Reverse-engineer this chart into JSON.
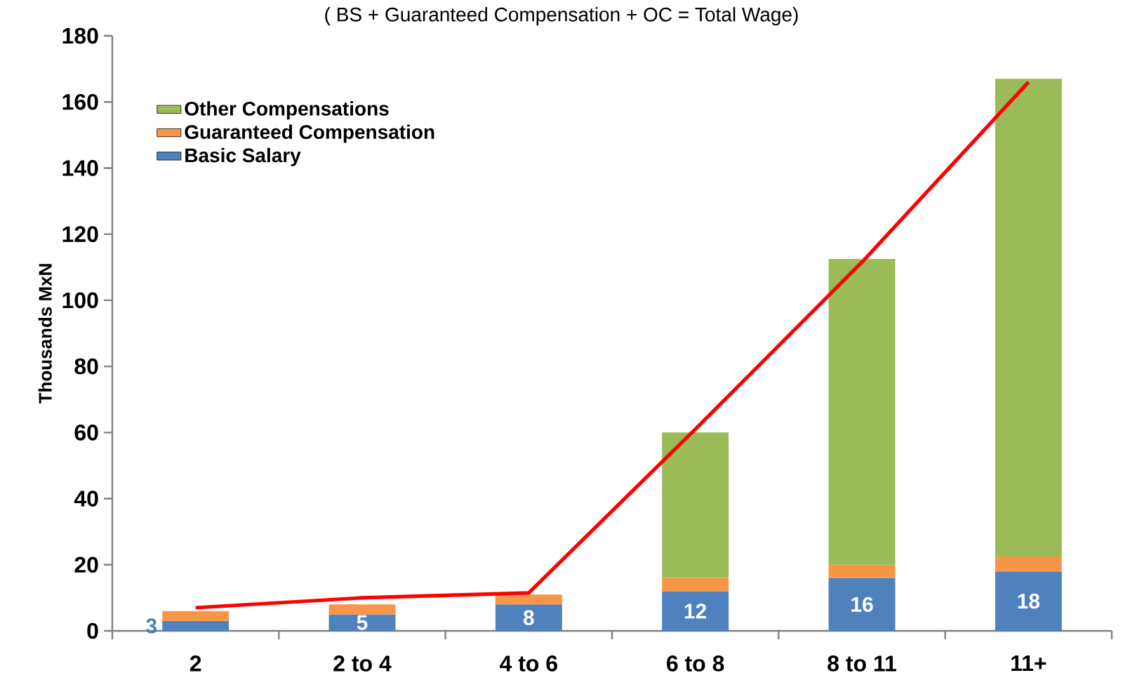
{
  "chart_data": {
    "type": "bar",
    "stacked": true,
    "title": "( BS  +  Guaranteed Compensation  +  OC  = Total Wage)",
    "ylabel": "Thousands MxN",
    "categories": [
      "2",
      "2 to 4",
      "4 to 6",
      "6 to 8",
      "8 to 11",
      "11+"
    ],
    "series": [
      {
        "name": "Basic Salary",
        "color": "#4f81bd",
        "values": [
          3,
          5,
          8,
          12,
          16,
          18
        ],
        "value_labels": [
          "3",
          "5",
          "8",
          "12",
          "16",
          "18"
        ]
      },
      {
        "name": "Guaranteed Compensation",
        "color": "#f79646",
        "values": [
          3,
          3,
          3,
          4,
          4,
          4.5
        ]
      },
      {
        "name": "Other Compensations",
        "color": "#9bbb59",
        "values": [
          null,
          null,
          null,
          44,
          92.5,
          144.5
        ]
      },
      {
        "type": "line",
        "color": "#ff0000",
        "values": [
          7,
          10,
          11.5,
          61,
          111.5,
          166
        ]
      }
    ],
    "ylim": [
      0,
      180
    ],
    "yticks": [
      0,
      20,
      40,
      60,
      80,
      100,
      120,
      140,
      160,
      180
    ],
    "legend": "top left"
  }
}
